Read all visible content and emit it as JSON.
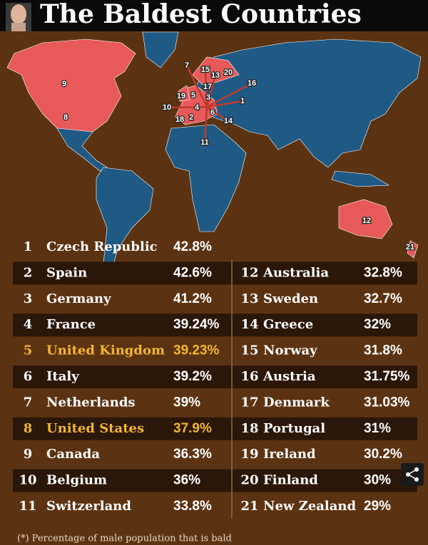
{
  "header": {
    "title": "The Baldest Countries"
  },
  "map": {
    "markers": [
      "9",
      "8",
      "7",
      "15",
      "13",
      "20",
      "17",
      "16",
      "19",
      "5",
      "3",
      "1",
      "4",
      "10",
      "6",
      "18",
      "2",
      "14",
      "11",
      "12",
      "21"
    ]
  },
  "table": {
    "left": [
      {
        "rank": "1",
        "country": "Czech Republic",
        "value": "42.8%"
      },
      {
        "rank": "2",
        "country": "Spain",
        "value": "42.6%"
      },
      {
        "rank": "3",
        "country": "Germany",
        "value": "41.2%"
      },
      {
        "rank": "4",
        "country": "France",
        "value": "39.24%"
      },
      {
        "rank": "5",
        "country": "United Kingdom",
        "value": "39.23%",
        "color": "#f2b632"
      },
      {
        "rank": "6",
        "country": "Italy",
        "value": "39.2%"
      },
      {
        "rank": "7",
        "country": "Netherlands",
        "value": "39%"
      },
      {
        "rank": "8",
        "country": "United States",
        "value": "37.9%",
        "color": "#f2b632"
      },
      {
        "rank": "9",
        "country": "Canada",
        "value": "36.3%"
      },
      {
        "rank": "10",
        "country": "Belgium",
        "value": "36%"
      },
      {
        "rank": "11",
        "country": "Switzerland",
        "value": "33.8%"
      }
    ],
    "right": [
      {
        "rank": "12",
        "country": "Australia",
        "value": "32.8%"
      },
      {
        "rank": "13",
        "country": "Sweden",
        "value": "32.7%"
      },
      {
        "rank": "14",
        "country": "Greece",
        "value": "32%"
      },
      {
        "rank": "15",
        "country": "Norway",
        "value": "31.8%"
      },
      {
        "rank": "16",
        "country": "Austria",
        "value": "31.75%"
      },
      {
        "rank": "17",
        "country": "Denmark",
        "value": "31.03%"
      },
      {
        "rank": "18",
        "country": "Portugal",
        "value": "31%"
      },
      {
        "rank": "19",
        "country": "Ireland",
        "value": "30.2%"
      },
      {
        "rank": "20",
        "country": "Finland",
        "value": "30%"
      },
      {
        "rank": "21",
        "country": "New Zealand",
        "value": "29%"
      }
    ]
  },
  "footnote": "(*) Percentage of male population that is bald"
}
